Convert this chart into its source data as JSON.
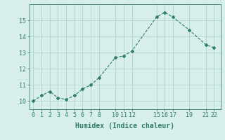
{
  "x_values": [
    0,
    1,
    2,
    3,
    4,
    5,
    6,
    7,
    8,
    10,
    11,
    12,
    15,
    16,
    17,
    19,
    21,
    22
  ],
  "y_values": [
    10.0,
    10.35,
    10.6,
    10.2,
    10.1,
    10.35,
    10.75,
    11.0,
    11.45,
    12.7,
    12.8,
    13.1,
    15.2,
    15.5,
    15.2,
    14.4,
    13.5,
    13.3
  ],
  "line_color": "#2e7d6d",
  "marker": "D",
  "marker_size": 2.0,
  "bg_color": "#d7eeeb",
  "grid_color": "#aed6cf",
  "tick_color": "#2e7d6d",
  "xlabel": "Humidex (Indice chaleur)",
  "xlabel_fontsize": 7,
  "tick_fontsize": 6,
  "ylim": [
    9.5,
    16.0
  ],
  "yticks": [
    10,
    11,
    12,
    13,
    14,
    15
  ],
  "xticks": [
    0,
    1,
    2,
    3,
    4,
    5,
    6,
    7,
    8,
    10,
    11,
    12,
    15,
    16,
    17,
    19,
    21,
    22
  ],
  "xlim": [
    -0.5,
    22.8
  ],
  "line_width": 0.8
}
